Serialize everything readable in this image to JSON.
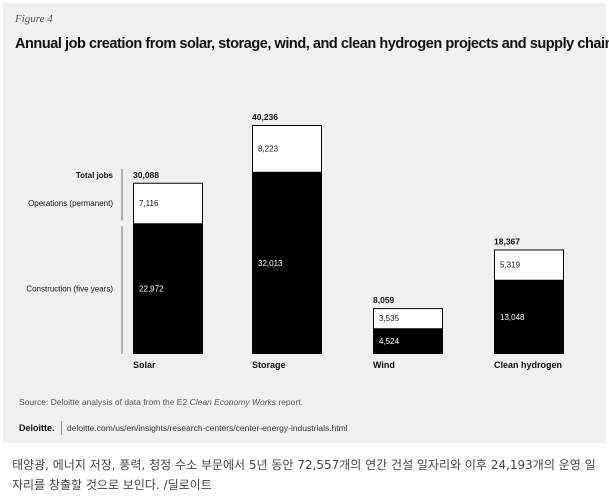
{
  "figure": {
    "label": "Figure 4",
    "title": "Annual job creation from solar, storage, wind, and clean hydrogen projects and supply chains"
  },
  "chart_data": {
    "type": "bar",
    "stacked": true,
    "categories": [
      "Solar",
      "Storage",
      "Wind",
      "Clean hydrogen"
    ],
    "series": [
      {
        "name": "Construction (five years)",
        "values": [
          22972,
          32013,
          4524,
          13048
        ],
        "color": "#000000"
      },
      {
        "name": "Operations (permanent)",
        "values": [
          7116,
          8223,
          3535,
          5319
        ],
        "color": "#ffffff"
      }
    ],
    "totals": [
      30088,
      40236,
      8059,
      18367
    ],
    "total_labels": [
      "30,088",
      "40,236",
      "8,059",
      "18,367"
    ],
    "construction_labels": [
      "22,972",
      "32,013",
      "4,524",
      "13,048"
    ],
    "operations_labels": [
      "7,116",
      "8,223",
      "3,535",
      "5,319"
    ],
    "row_labels": {
      "total": "Total jobs",
      "operations": "Operations (permanent)",
      "construction": "Construction (five years)"
    },
    "ylim": [
      0,
      45000
    ],
    "grid": false,
    "legend": "left-side labels"
  },
  "footer": {
    "source_prefix": "Source: Deloitte analysis of data from the E2 ",
    "source_italic": "Clean Economy Works",
    "source_suffix": " report.",
    "brand": "Deloitte.",
    "url": "deloitte.com/us/en/insights/research-centers/center-energy-industrials.html"
  },
  "caption": "태양광, 에너지 저장, 풍력, 청정 수소 부문에서 5년 동안 72,557개의 연간 건설 일자리와 이후 24,193개의 운영 일자리를 창출할 것으로 보인다. /딜로이트"
}
